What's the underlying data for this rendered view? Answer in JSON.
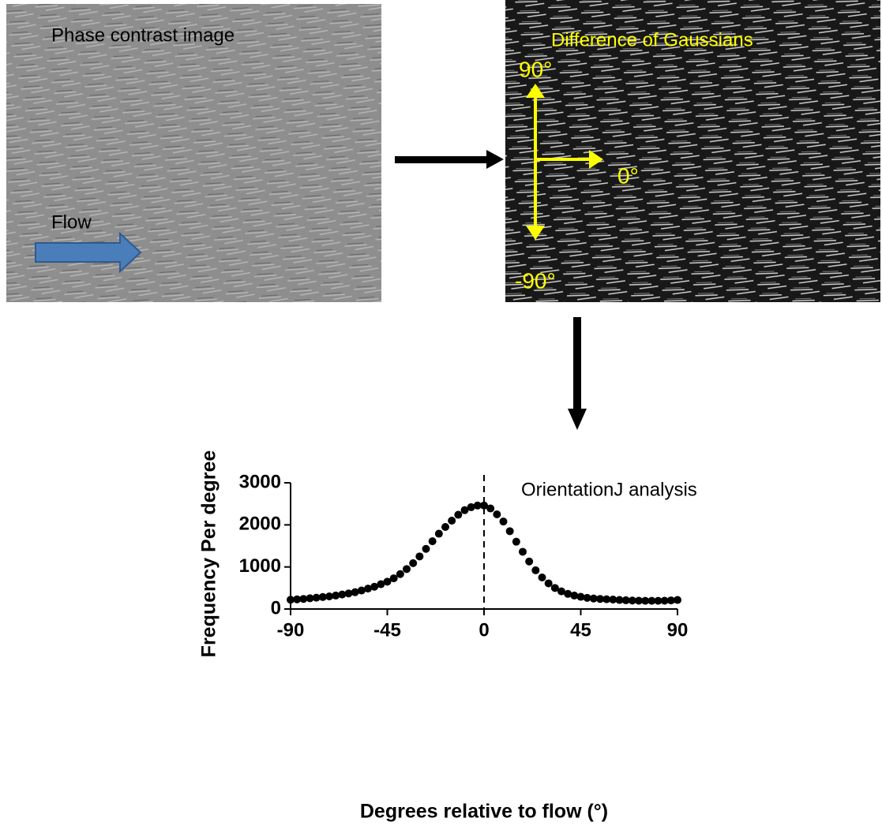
{
  "panels": {
    "phase_label": "Phase contrast image",
    "flow_label": "Flow",
    "dog_label": "Difference of Gaussians",
    "angle_top": "90°",
    "angle_right": "0°",
    "angle_bottom": "-90°"
  },
  "chart_data": {
    "type": "scatter",
    "annotation": "OrientationJ analysis",
    "x_label": "Degrees relative to flow (°)",
    "y_label": "Frequency Per degree",
    "color": "#000000",
    "reference_x": 0,
    "x": [
      -90,
      -87,
      -84,
      -81,
      -78,
      -75,
      -72,
      -69,
      -66,
      -63,
      -60,
      -57,
      -54,
      -51,
      -48,
      -45,
      -42,
      -39,
      -36,
      -33,
      -30,
      -27,
      -24,
      -21,
      -18,
      -15,
      -12,
      -9,
      -6,
      -3,
      0,
      3,
      6,
      9,
      12,
      15,
      18,
      21,
      24,
      27,
      30,
      33,
      36,
      39,
      42,
      45,
      48,
      51,
      54,
      57,
      60,
      63,
      66,
      69,
      72,
      75,
      78,
      81,
      84,
      87,
      90
    ],
    "values": [
      220,
      230,
      240,
      255,
      270,
      285,
      300,
      320,
      345,
      370,
      400,
      440,
      485,
      530,
      590,
      650,
      730,
      830,
      950,
      1090,
      1250,
      1430,
      1610,
      1790,
      1950,
      2100,
      2240,
      2350,
      2420,
      2460,
      2460,
      2390,
      2250,
      2080,
      1850,
      1600,
      1360,
      1130,
      920,
      750,
      610,
      500,
      420,
      360,
      320,
      290,
      265,
      250,
      240,
      232,
      225,
      215,
      208,
      202,
      198,
      195,
      195,
      195,
      198,
      205,
      215
    ],
    "xlim": [
      -90,
      90
    ],
    "xticks": [
      -90,
      -45,
      0,
      45,
      90
    ],
    "ylim": [
      0,
      3000
    ],
    "yticks": [
      0,
      1000,
      2000,
      3000
    ]
  }
}
